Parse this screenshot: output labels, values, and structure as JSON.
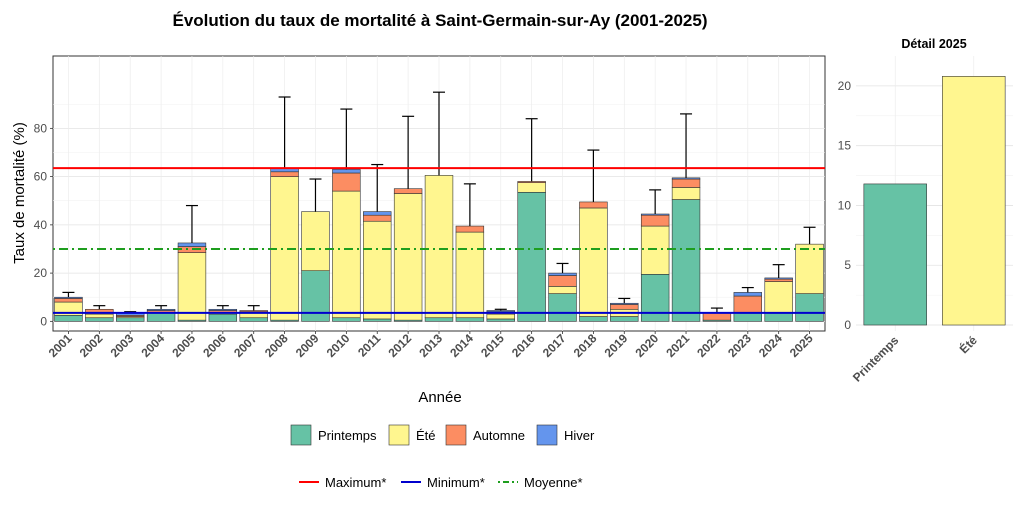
{
  "chart_data": [
    {
      "type": "bar",
      "stacked": true,
      "title": "Évolution du taux de mortalité à Saint-Germain-sur-Ay (2001-2025)",
      "xlabel": "Année",
      "ylabel": "Taux de mortalité (%)",
      "ylim": [
        -4,
        110
      ],
      "yticks": [
        0,
        20,
        40,
        60,
        80
      ],
      "categories": [
        "2001",
        "2002",
        "2003",
        "2004",
        "2005",
        "2006",
        "2007",
        "2008",
        "2009",
        "2010",
        "2011",
        "2012",
        "2013",
        "2014",
        "2015",
        "2016",
        "2017",
        "2018",
        "2019",
        "2020",
        "2021",
        "2022",
        "2023",
        "2024",
        "2025"
      ],
      "series": [
        {
          "name": "Printemps",
          "color": "#66c2a5",
          "values": [
            2.5,
            1.5,
            1.5,
            3.5,
            0.5,
            3,
            1.5,
            0.5,
            21,
            1.5,
            1,
            0.5,
            1.5,
            1.5,
            1,
            53.5,
            11.5,
            2,
            2,
            19.5,
            50.5,
            0.5,
            3.5,
            3.5,
            11.5
          ]
        },
        {
          "name": "Été",
          "color": "#fff68f",
          "values": [
            5.5,
            1.5,
            0.5,
            0,
            28,
            0.5,
            2.5,
            59.5,
            24.5,
            52.5,
            40.5,
            52.5,
            59,
            35.5,
            2,
            4,
            3,
            45,
            3,
            20,
            5,
            0,
            0,
            13,
            20.5
          ]
        },
        {
          "name": "Automne",
          "color": "#fc8d62",
          "values": [
            1.5,
            2,
            0.5,
            1,
            2.5,
            1,
            0.5,
            2,
            0,
            7.5,
            2.5,
            2,
            0,
            2.5,
            1,
            0.5,
            4.5,
            2.5,
            2,
            4.5,
            3.5,
            3,
            7,
            1,
            0
          ]
        },
        {
          "name": "Hiver",
          "color": "#6495ed",
          "values": [
            0.5,
            0,
            1,
            0.5,
            1.5,
            0.5,
            0,
            1.5,
            0,
            1.5,
            1.5,
            0,
            0,
            0,
            0.5,
            0,
            1,
            0,
            0.5,
            0.5,
            0.5,
            0,
            1.5,
            0.5,
            0
          ]
        }
      ],
      "error_top": [
        12,
        6.5,
        4,
        6.5,
        48,
        6.5,
        6.5,
        93,
        59,
        88,
        65,
        85,
        95,
        57,
        5,
        84,
        24,
        71,
        9.5,
        54.5,
        86,
        5.5,
        14,
        23.5,
        39
      ],
      "hlines": [
        {
          "name": "Maximum*",
          "value": 63.5,
          "color": "#ff0000",
          "style": "solid"
        },
        {
          "name": "Minimum*",
          "value": 3.5,
          "color": "#0000cd",
          "style": "solid"
        },
        {
          "name": "Moyenne*",
          "value": 30,
          "color": "#1e9e1e",
          "style": "dotdash"
        }
      ]
    },
    {
      "type": "bar",
      "title": "Détail 2025",
      "categories": [
        "Printemps",
        "Été"
      ],
      "values": [
        11.8,
        20.8
      ],
      "colors": [
        "#66c2a5",
        "#fff68f"
      ],
      "ylim": [
        -0.5,
        22.5
      ],
      "yticks": [
        0,
        5,
        10,
        15,
        20
      ]
    }
  ],
  "legend": {
    "seasons": [
      "Printemps",
      "Été",
      "Automne",
      "Hiver"
    ],
    "lines": [
      "Maximum*",
      "Minimum*",
      "Moyenne*"
    ]
  }
}
